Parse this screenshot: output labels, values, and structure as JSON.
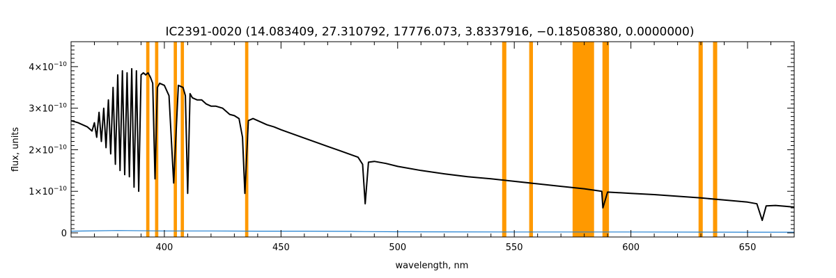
{
  "chart_data": {
    "type": "line",
    "title": "IC2391-0020   (14.083409, 27.310792, 17776.073, 3.8337916, −0.18508380, 0.0000000)",
    "xlabel": "wavelength, nm",
    "ylabel": "flux, units",
    "xlim": [
      360,
      670
    ],
    "ylim": [
      -1e-11,
      4.6e-10
    ],
    "x_ticks": [
      {
        "value": 400,
        "label": "400"
      },
      {
        "value": 450,
        "label": "450"
      },
      {
        "value": 500,
        "label": "500"
      },
      {
        "value": 550,
        "label": "550"
      },
      {
        "value": 600,
        "label": "600"
      },
      {
        "value": 650,
        "label": "650"
      }
    ],
    "y_ticks": [
      {
        "value": 0,
        "base": "0",
        "exp": ""
      },
      {
        "value": 1e-10,
        "base": "1×10",
        "exp": "−10"
      },
      {
        "value": 2e-10,
        "base": "2×10",
        "exp": "−10"
      },
      {
        "value": 3e-10,
        "base": "3×10",
        "exp": "−10"
      },
      {
        "value": 4e-10,
        "base": "4×10",
        "exp": "−10"
      }
    ],
    "colors": {
      "flux": "#000000",
      "masks": "#ff9900",
      "error": "#1f7fd0"
    },
    "masked_regions": [
      [
        392.2,
        393.6
      ],
      [
        396.0,
        397.4
      ],
      [
        404.0,
        405.4
      ],
      [
        407.0,
        408.4
      ],
      [
        434.6,
        436.0
      ],
      [
        544.8,
        546.6
      ],
      [
        556.4,
        558.0
      ],
      [
        575.0,
        584.2
      ],
      [
        587.8,
        590.6
      ],
      [
        629.0,
        630.8
      ],
      [
        635.2,
        637.0
      ]
    ],
    "flux_series": {
      "name": "",
      "x": [
        360,
        363,
        365,
        367,
        369,
        370,
        371,
        372,
        373,
        374,
        375,
        376,
        377,
        378,
        379,
        380,
        381,
        382,
        383,
        384,
        385,
        386,
        387,
        388,
        389,
        390,
        391,
        392,
        393,
        394,
        395,
        396,
        397,
        398,
        400,
        402,
        404,
        406,
        408,
        409,
        410,
        411,
        412,
        414,
        416,
        418,
        420,
        422,
        425,
        428,
        430,
        432,
        433.5,
        434.5,
        436,
        438,
        440,
        442,
        444,
        447,
        450,
        455,
        460,
        465,
        470,
        475,
        480,
        483,
        485,
        486.1,
        487.5,
        490,
        495,
        500,
        510,
        520,
        530,
        540,
        550,
        560,
        570,
        580,
        587.5,
        588,
        590,
        600,
        610,
        620,
        630,
        640,
        650,
        654,
        656.3,
        658,
        662,
        666,
        670
      ],
      "y": [
        2.7e-10,
        2.65e-10,
        2.6e-10,
        2.55e-10,
        2.45e-10,
        2.65e-10,
        2.3e-10,
        2.9e-10,
        2.2e-10,
        3e-10,
        2.05e-10,
        3.2e-10,
        1.9e-10,
        3.5e-10,
        1.65e-10,
        3.8e-10,
        1.5e-10,
        3.9e-10,
        1.4e-10,
        3.85e-10,
        1.35e-10,
        3.95e-10,
        1.1e-10,
        3.9e-10,
        1e-10,
        3.8e-10,
        3.85e-10,
        3.8e-10,
        3.85e-10,
        3.75e-10,
        3.6e-10,
        1.3e-10,
        3.5e-10,
        3.6e-10,
        3.55e-10,
        3.3e-10,
        1.2e-10,
        3.55e-10,
        3.5e-10,
        3.3e-10,
        9.5e-11,
        3.35e-10,
        3.25e-10,
        3.2e-10,
        3.2e-10,
        3.1e-10,
        3.05e-10,
        3.05e-10,
        3e-10,
        2.85e-10,
        2.82e-10,
        2.75e-10,
        2.3e-10,
        9.5e-11,
        2.7e-10,
        2.75e-10,
        2.7e-10,
        2.65e-10,
        2.6e-10,
        2.55e-10,
        2.48e-10,
        2.38e-10,
        2.28e-10,
        2.18e-10,
        2.08e-10,
        1.98e-10,
        1.88e-10,
        1.82e-10,
        1.65e-10,
        7e-11,
        1.7e-10,
        1.72e-10,
        1.67e-10,
        1.6e-10,
        1.5e-10,
        1.42e-10,
        1.35e-10,
        1.3e-10,
        1.24e-10,
        1.18e-10,
        1.12e-10,
        1.06e-10,
        1e-10,
        6e-11,
        9.8e-11,
        9.5e-11,
        9.2e-11,
        8.8e-11,
        8.4e-11,
        7.9e-11,
        7.4e-11,
        7e-11,
        3e-11,
        6.5e-11,
        6.6e-11,
        6.4e-11,
        6.2e-11
      ]
    },
    "error_series": {
      "name": "",
      "x": [
        360,
        380,
        400,
        420,
        440,
        460,
        480,
        486,
        500,
        550,
        600,
        650,
        670
      ],
      "y": [
        4e-12,
        5.5e-12,
        4.5e-12,
        4.5e-12,
        4e-12,
        4e-12,
        3.5e-12,
        3e-12,
        2.5e-12,
        2e-12,
        2e-12,
        1.5e-12,
        1.5e-12
      ]
    },
    "grid": false,
    "legend": "none"
  }
}
